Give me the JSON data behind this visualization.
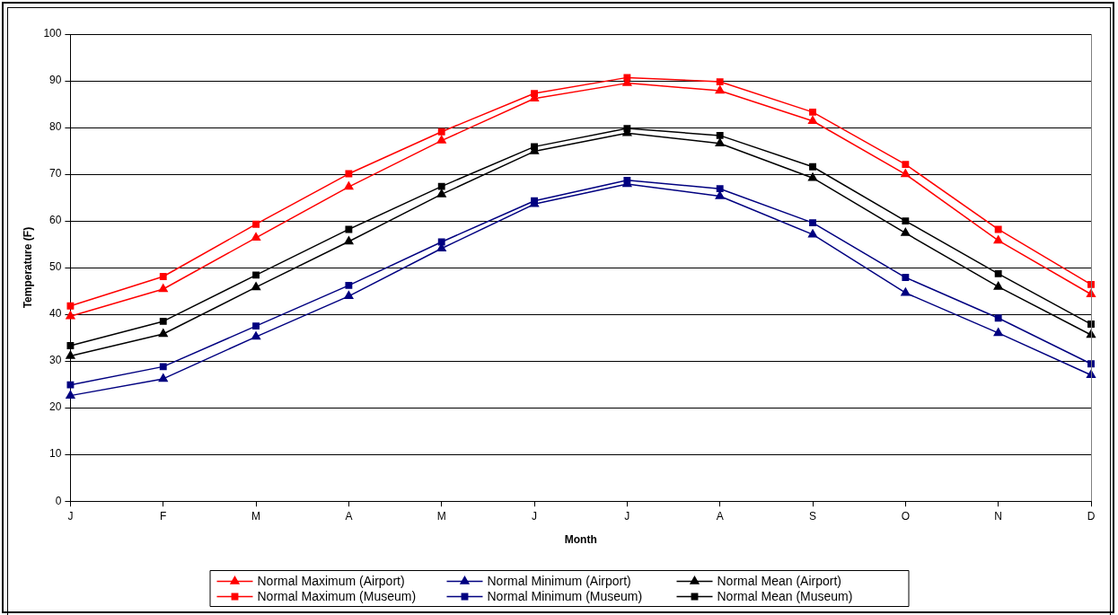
{
  "chart_data": {
    "type": "line",
    "xlabel": "Month",
    "ylabel": "Temperature (F)",
    "categories": [
      "J",
      "F",
      "M",
      "A",
      "M",
      "J",
      "J",
      "A",
      "S",
      "O",
      "N",
      "D"
    ],
    "ylim": [
      0,
      100
    ],
    "yticks": [
      0,
      10,
      20,
      30,
      40,
      50,
      60,
      70,
      80,
      90,
      100
    ],
    "grid": "y",
    "legend": "bottom",
    "series": [
      {
        "name": "Normal Maximum (Airport)",
        "color": "#ff0000",
        "marker": "triangle",
        "values": [
          39.6,
          45.4,
          56.4,
          67.3,
          77.2,
          86.2,
          89.5,
          87.9,
          81.4,
          70.0,
          55.8,
          44.3
        ]
      },
      {
        "name": "Normal Minimum (Airport)",
        "color": "#000080",
        "marker": "triangle",
        "values": [
          22.6,
          26.2,
          35.2,
          43.9,
          54.1,
          63.6,
          67.9,
          65.3,
          57.1,
          44.6,
          36.0,
          27.0
        ]
      },
      {
        "name": "Normal Mean (Airport)",
        "color": "#000000",
        "marker": "triangle",
        "values": [
          31.1,
          35.8,
          45.8,
          55.6,
          65.7,
          74.9,
          78.8,
          76.6,
          69.2,
          57.4,
          45.9,
          35.6
        ]
      },
      {
        "name": "Normal Maximum (Museum)",
        "color": "#ff0000",
        "marker": "square",
        "values": [
          41.8,
          48.1,
          59.3,
          70.1,
          79.1,
          87.3,
          90.7,
          89.8,
          83.3,
          72.1,
          58.2,
          46.4
        ]
      },
      {
        "name": "Normal Minimum (Museum)",
        "color": "#000080",
        "marker": "square",
        "values": [
          24.9,
          28.8,
          37.5,
          46.2,
          55.5,
          64.3,
          68.7,
          66.9,
          59.6,
          47.9,
          39.2,
          29.4
        ]
      },
      {
        "name": "Normal Mean (Museum)",
        "color": "#000000",
        "marker": "square",
        "values": [
          33.3,
          38.5,
          48.4,
          58.2,
          67.4,
          75.9,
          79.8,
          78.3,
          71.6,
          60.0,
          48.7,
          37.9
        ]
      }
    ]
  }
}
